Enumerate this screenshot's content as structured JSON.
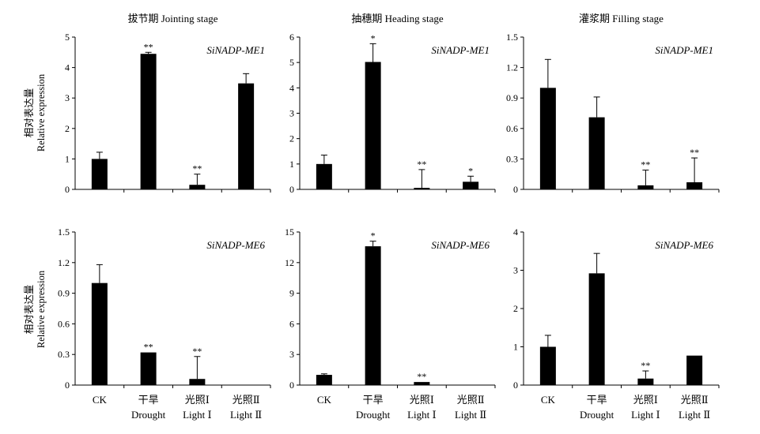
{
  "y_axis_label": {
    "cn": "相对表达量",
    "en": "Relative expression"
  },
  "x_labels": [
    {
      "cn": "CK",
      "en": ""
    },
    {
      "cn": "干旱",
      "en": "Drought"
    },
    {
      "cn": "光照Ⅰ",
      "en": "Light Ⅰ"
    },
    {
      "cn": "光照Ⅱ",
      "en": "Light Ⅱ"
    }
  ],
  "chart_data": [
    {
      "type": "bar",
      "title": "拔节期 Jointing stage",
      "gene": "SiNADP-ME1",
      "categories": [
        "CK",
        "干旱 Drought",
        "光照Ⅰ Light Ⅰ",
        "光照Ⅱ Light Ⅱ"
      ],
      "values": [
        1.0,
        4.45,
        0.15,
        3.48
      ],
      "errors": [
        0.22,
        0.05,
        0.35,
        0.32
      ],
      "significance": [
        "",
        "**",
        "**",
        ""
      ],
      "ylim": [
        0,
        5
      ],
      "yticks": [
        "0",
        "1",
        "2",
        "3",
        "4",
        "5"
      ],
      "ylabel": "相对表达量 Relative expression"
    },
    {
      "type": "bar",
      "title": "抽穗期 Heading stage",
      "gene": "SiNADP-ME1",
      "categories": [
        "CK",
        "干旱 Drought",
        "光照Ⅰ Light Ⅰ",
        "光照Ⅱ Light Ⅱ"
      ],
      "values": [
        1.0,
        5.02,
        0.06,
        0.3
      ],
      "errors": [
        0.35,
        0.72,
        0.72,
        0.22
      ],
      "significance": [
        "",
        "*",
        "**",
        "*"
      ],
      "ylim": [
        0,
        6
      ],
      "yticks": [
        "0",
        "1",
        "2",
        "3",
        "4",
        "5",
        "6"
      ],
      "ylabel": ""
    },
    {
      "type": "bar",
      "title": "灌浆期 Filling stage",
      "gene": "SiNADP-ME1",
      "categories": [
        "CK",
        "干旱 Drought",
        "光照Ⅰ Light Ⅰ",
        "光照Ⅱ Light Ⅱ"
      ],
      "values": [
        1.0,
        0.71,
        0.04,
        0.07
      ],
      "errors": [
        0.28,
        0.2,
        0.15,
        0.24
      ],
      "significance": [
        "",
        "",
        "**",
        "**"
      ],
      "ylim": [
        0,
        1.5
      ],
      "yticks": [
        "0",
        "0.3",
        "0.6",
        "0.9",
        "1.2",
        "1.5"
      ],
      "ylabel": ""
    },
    {
      "type": "bar",
      "title": "",
      "gene": "SiNADP-ME6",
      "categories": [
        "CK",
        "干旱 Drought",
        "光照Ⅰ Light Ⅰ",
        "光照Ⅱ Light Ⅱ"
      ],
      "values": [
        1.0,
        0.32,
        0.06,
        0.0
      ],
      "errors": [
        0.18,
        0.0,
        0.22,
        0.0
      ],
      "significance": [
        "",
        "**",
        "**",
        ""
      ],
      "ylim": [
        0,
        1.5
      ],
      "yticks": [
        "0",
        "0.3",
        "0.6",
        "0.9",
        "1.2",
        "1.5"
      ],
      "ylabel": "相对表达量 Relative expression"
    },
    {
      "type": "bar",
      "title": "",
      "gene": "SiNADP-ME6",
      "categories": [
        "CK",
        "干旱 Drought",
        "光照Ⅰ Light Ⅰ",
        "光照Ⅱ Light Ⅱ"
      ],
      "values": [
        1.0,
        13.6,
        0.3,
        0.0
      ],
      "errors": [
        0.1,
        0.5,
        0.0,
        0.0
      ],
      "significance": [
        "",
        "*",
        "**",
        ""
      ],
      "ylim": [
        0,
        15
      ],
      "yticks": [
        "0",
        "3",
        "6",
        "9",
        "12",
        "15"
      ],
      "ylabel": ""
    },
    {
      "type": "bar",
      "title": "",
      "gene": "SiNADP-ME6",
      "categories": [
        "CK",
        "干旱 Drought",
        "光照Ⅰ Light Ⅰ",
        "光照Ⅱ Light Ⅱ"
      ],
      "values": [
        1.0,
        2.92,
        0.17,
        0.77
      ],
      "errors": [
        0.3,
        0.52,
        0.2,
        0.0
      ],
      "significance": [
        "",
        "",
        "**",
        ""
      ],
      "ylim": [
        0,
        4
      ],
      "yticks": [
        "0",
        "1",
        "2",
        "3",
        "4"
      ],
      "ylabel": ""
    }
  ]
}
